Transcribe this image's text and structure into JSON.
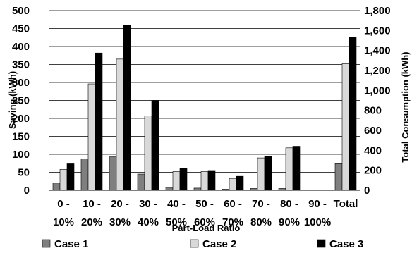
{
  "chart_data": {
    "type": "bar",
    "categories": [
      [
        "0 -",
        "10%"
      ],
      [
        "10 -",
        "20%"
      ],
      [
        "20 -",
        "30%"
      ],
      [
        "30 -",
        "40%"
      ],
      [
        "40 -",
        "50%"
      ],
      [
        "50 -",
        "60%"
      ],
      [
        "60 -",
        "70%"
      ],
      [
        "70 -",
        "80%"
      ],
      [
        "80 -",
        "90%"
      ],
      [
        "90 -",
        "100%"
      ],
      [
        "Total",
        ""
      ]
    ],
    "series": [
      {
        "name": "Case 1",
        "axis": "left",
        "color": "#7f7f7f",
        "values": [
          20,
          87,
          93,
          45,
          8,
          6,
          3,
          5,
          5,
          0,
          74
        ]
      },
      {
        "name": "Case 2",
        "axis": "left",
        "color": "#d9d9d9",
        "values": [
          58,
          296,
          365,
          207,
          52,
          52,
          33,
          90,
          118,
          0,
          352
        ]
      },
      {
        "name": "Case 3",
        "axis": "right",
        "color": "#000000",
        "values": [
          265,
          1375,
          1655,
          900,
          220,
          198,
          140,
          342,
          441,
          0,
          1535
        ]
      }
    ],
    "xlabel": "Part-Load Ratio",
    "ylabel": "Saving (kWh)",
    "y2label": "Total Consumption (kWh)",
    "ylim": [
      0,
      500
    ],
    "y2lim": [
      0,
      1800
    ],
    "yticks": [
      "0",
      "50",
      "100",
      "150",
      "200",
      "250",
      "300",
      "350",
      "400",
      "450",
      "500"
    ],
    "y2ticks": [
      "0",
      "200",
      "400",
      "600",
      "800",
      "1,000",
      "1,200",
      "1,400",
      "1,600",
      "1,800"
    ],
    "grid": true,
    "legend_position": "bottom"
  }
}
